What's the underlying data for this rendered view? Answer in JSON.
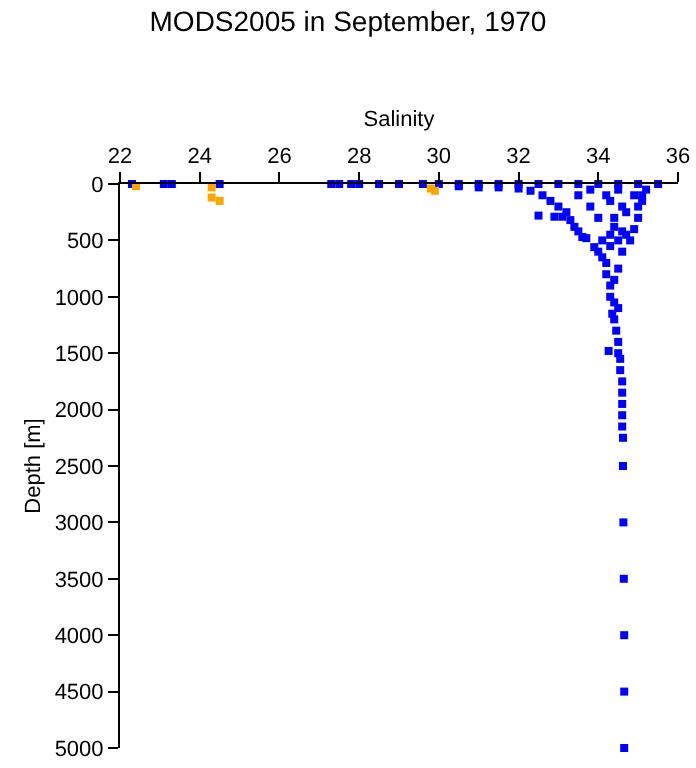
{
  "chart_data": {
    "type": "scatter",
    "title": "MODS2005 in September, 1970",
    "xlabel": "Salinity",
    "ylabel": "Depth [m]",
    "xlim": [
      22,
      36
    ],
    "xticks": [
      22,
      24,
      26,
      28,
      30,
      32,
      34,
      36
    ],
    "ylim": [
      5000,
      0
    ],
    "yticks": [
      0,
      500,
      1000,
      1500,
      2000,
      2500,
      3000,
      3500,
      4000,
      4500,
      5000
    ],
    "marker": "square",
    "grid": false,
    "series": [
      {
        "color": "#0000ff",
        "x": [
          22.3,
          23.1,
          23.3,
          24.5,
          27.3,
          27.5,
          27.8,
          28.0,
          28.5,
          29.0,
          29.6,
          30.0,
          30.5,
          31,
          31.5,
          32,
          32.5,
          33,
          33.5,
          34,
          34.5,
          35,
          35.5,
          30.5,
          31,
          31.5,
          32,
          32.3,
          32.6,
          32.8,
          32.5,
          32.9,
          33.1,
          33,
          33.2,
          33.3,
          33.4,
          33.5,
          33.6,
          33.7,
          33.9,
          34.0,
          34.1,
          34.2,
          34.1,
          34.3,
          34.5,
          34.7,
          34.8,
          34.9,
          35.0,
          35.0,
          35.1,
          35.1,
          35.2,
          34.9,
          34.6,
          34.4,
          34.0,
          33.8,
          33.5,
          34.2,
          33.8,
          34.5,
          34.3,
          34.7,
          34.4,
          34.6,
          34.3,
          34.6,
          34.2,
          34.4,
          34.3,
          34.5,
          34.3,
          34.4,
          34.35,
          34.5,
          34.4,
          34.45,
          34.5,
          34.26,
          34.5,
          34.55,
          34.55,
          34.6,
          34.6,
          34.6,
          34.6,
          34.6,
          34.62,
          34.62,
          34.63,
          34.64,
          34.65,
          34.65,
          34.65
        ],
        "values": [
          0,
          0,
          0,
          0,
          0,
          0,
          0,
          0,
          0,
          0,
          0,
          0,
          0,
          0,
          0,
          0,
          0,
          0,
          0,
          0,
          0,
          0,
          0,
          20,
          30,
          30,
          40,
          60,
          100,
          150,
          280,
          290,
          290,
          200,
          250,
          320,
          380,
          420,
          470,
          480,
          560,
          600,
          650,
          700,
          500,
          450,
          500,
          450,
          500,
          400,
          300,
          200,
          150,
          100,
          50,
          100,
          200,
          300,
          300,
          200,
          100,
          100,
          50,
          50,
          150,
          250,
          380,
          420,
          550,
          600,
          800,
          850,
          900,
          750,
          1000,
          1050,
          1150,
          1100,
          1200,
          1300,
          1400,
          1480,
          1500,
          1550,
          1650,
          1750,
          1850,
          1950,
          2050,
          2150,
          2250,
          2500,
          3000,
          3500,
          4000,
          4500,
          5000
        ]
      },
      {
        "color": "#ffa500",
        "x": [
          22.4,
          24.3,
          24.3,
          24.5,
          29.8,
          29.9
        ],
        "values": [
          20,
          30,
          120,
          150,
          40,
          60
        ]
      }
    ]
  }
}
